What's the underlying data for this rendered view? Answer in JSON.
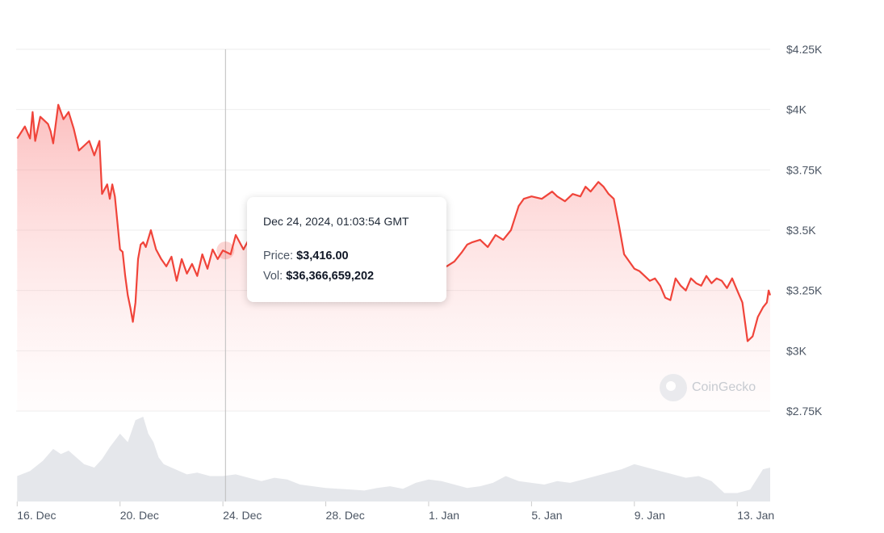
{
  "chart_data": {
    "type": "area",
    "xlabel": "",
    "ylabel": "",
    "ylim": [
      2750,
      4250
    ],
    "yticks": [
      {
        "value": 4250,
        "label": "$4.25K"
      },
      {
        "value": 4000,
        "label": "$4K"
      },
      {
        "value": 3750,
        "label": "$3.75K"
      },
      {
        "value": 3500,
        "label": "$3.5K"
      },
      {
        "value": 3250,
        "label": "$3.25K"
      },
      {
        "value": 3000,
        "label": "$3K"
      },
      {
        "value": 2750,
        "label": "$2.75K"
      }
    ],
    "xticks": [
      {
        "day": 0,
        "label": "16. Dec"
      },
      {
        "day": 4,
        "label": "20. Dec"
      },
      {
        "day": 8,
        "label": "24. Dec"
      },
      {
        "day": 12,
        "label": "28. Dec"
      },
      {
        "day": 16,
        "label": "1. Jan"
      },
      {
        "day": 20,
        "label": "5. Jan"
      },
      {
        "day": 24,
        "label": "9. Jan"
      },
      {
        "day": 28,
        "label": "13. Jan"
      }
    ],
    "xrange_days": [
      -0.04,
      29.28
    ],
    "grid": true,
    "legend": "none",
    "colors": {
      "line": "#f0443a",
      "fill": "#fca5a5",
      "volume": "#e5e7eb",
      "grid": "#eeeeee",
      "crosshair": "#bdbdbd"
    },
    "price_series": {
      "day": [
        0,
        0.3,
        0.5,
        0.6,
        0.7,
        0.9,
        1.2,
        1.3,
        1.4,
        1.6,
        1.8,
        2.0,
        2.2,
        2.4,
        2.6,
        2.8,
        3.0,
        3.2,
        3.3,
        3.5,
        3.6,
        3.7,
        3.8,
        4.0,
        4.1,
        4.2,
        4.3,
        4.4,
        4.5,
        4.6,
        4.7,
        4.8,
        4.9,
        5.0,
        5.2,
        5.4,
        5.6,
        5.8,
        6.0,
        6.2,
        6.4,
        6.6,
        6.8,
        7.0,
        7.2,
        7.4,
        7.6,
        7.8,
        8.0,
        8.3,
        8.5,
        8.8,
        9.0,
        9.3,
        9.7,
        10.0,
        10.5,
        11.0,
        11.5,
        12.0,
        12.5,
        13.0,
        13.5,
        14.0,
        14.5,
        15.0,
        15.5,
        16.0,
        16.4,
        16.7,
        17.0,
        17.3,
        17.5,
        17.7,
        18.0,
        18.3,
        18.6,
        18.9,
        19.2,
        19.5,
        19.7,
        20.0,
        20.4,
        20.8,
        21.0,
        21.3,
        21.6,
        21.9,
        22.1,
        22.3,
        22.6,
        22.8,
        23.0,
        23.2,
        23.4,
        23.6,
        23.8,
        24.0,
        24.2,
        24.4,
        24.6,
        24.8,
        25.0,
        25.2,
        25.4,
        25.6,
        25.8,
        26.0,
        26.2,
        26.4,
        26.6,
        26.8,
        27.0,
        27.2,
        27.4,
        27.6,
        27.8,
        28.0,
        28.2,
        28.4,
        28.6,
        28.8,
        29.0,
        29.15,
        29.22,
        29.28
      ],
      "price": [
        3880,
        3930,
        3880,
        3990,
        3870,
        3970,
        3940,
        3910,
        3860,
        4020,
        3960,
        3990,
        3920,
        3830,
        3850,
        3870,
        3810,
        3870,
        3650,
        3690,
        3630,
        3690,
        3640,
        3420,
        3410,
        3310,
        3230,
        3180,
        3120,
        3200,
        3380,
        3440,
        3450,
        3430,
        3500,
        3420,
        3380,
        3350,
        3390,
        3290,
        3380,
        3320,
        3360,
        3310,
        3400,
        3340,
        3420,
        3380,
        3416,
        3400,
        3480,
        3420,
        3460,
        3430,
        3460,
        3420,
        3380,
        3410,
        3360,
        3400,
        3370,
        3350,
        3380,
        3380,
        3410,
        3350,
        3370,
        3340,
        3360,
        3350,
        3370,
        3410,
        3440,
        3450,
        3460,
        3430,
        3480,
        3460,
        3500,
        3600,
        3630,
        3640,
        3630,
        3660,
        3640,
        3620,
        3650,
        3640,
        3680,
        3660,
        3700,
        3680,
        3650,
        3630,
        3520,
        3400,
        3370,
        3340,
        3330,
        3310,
        3290,
        3300,
        3270,
        3220,
        3210,
        3300,
        3270,
        3250,
        3300,
        3280,
        3270,
        3310,
        3280,
        3300,
        3290,
        3260,
        3300,
        3250,
        3200,
        3040,
        3060,
        3140,
        3180,
        3200,
        3250,
        3230
      ]
    },
    "volume_series": {
      "day": [
        0,
        0.5,
        1.0,
        1.4,
        1.7,
        2.0,
        2.3,
        2.6,
        3.0,
        3.3,
        3.6,
        4.0,
        4.3,
        4.6,
        4.9,
        5.1,
        5.3,
        5.5,
        5.7,
        6.0,
        6.3,
        6.6,
        7.0,
        7.5,
        8.0,
        8.5,
        9.0,
        9.5,
        10.0,
        10.5,
        11.0,
        11.5,
        12.0,
        12.5,
        13.0,
        13.5,
        14.0,
        14.5,
        15.0,
        15.5,
        16.0,
        16.5,
        17.0,
        17.5,
        18.0,
        18.5,
        19.0,
        19.5,
        20.0,
        20.5,
        21.0,
        21.5,
        22.0,
        22.5,
        23.0,
        23.5,
        24.0,
        24.5,
        25.0,
        25.5,
        26.0,
        26.5,
        27.0,
        27.5,
        28.0,
        28.5,
        29.0,
        29.28
      ],
      "volume": [
        0.3,
        0.36,
        0.48,
        0.62,
        0.56,
        0.6,
        0.52,
        0.44,
        0.4,
        0.5,
        0.64,
        0.8,
        0.7,
        0.96,
        1.0,
        0.8,
        0.7,
        0.52,
        0.44,
        0.4,
        0.36,
        0.32,
        0.34,
        0.3,
        0.3,
        0.32,
        0.28,
        0.24,
        0.28,
        0.26,
        0.2,
        0.18,
        0.16,
        0.15,
        0.14,
        0.13,
        0.16,
        0.18,
        0.15,
        0.22,
        0.26,
        0.24,
        0.2,
        0.16,
        0.18,
        0.22,
        0.3,
        0.24,
        0.22,
        0.2,
        0.24,
        0.22,
        0.26,
        0.3,
        0.34,
        0.38,
        0.44,
        0.4,
        0.36,
        0.32,
        0.28,
        0.3,
        0.24,
        0.1,
        0.1,
        0.14,
        0.38,
        0.4
      ]
    },
    "crosshair_day": 8.1,
    "highlight_price": 3416
  },
  "tooltip": {
    "date": "Dec 24, 2024, 01:03:54 GMT",
    "price_label": "Price:",
    "price_value": "$3,416.00",
    "vol_label": "Vol:",
    "vol_value": "$36,366,659,202"
  },
  "watermark": {
    "text": "CoinGecko",
    "icon": "coingecko-logo-icon"
  }
}
